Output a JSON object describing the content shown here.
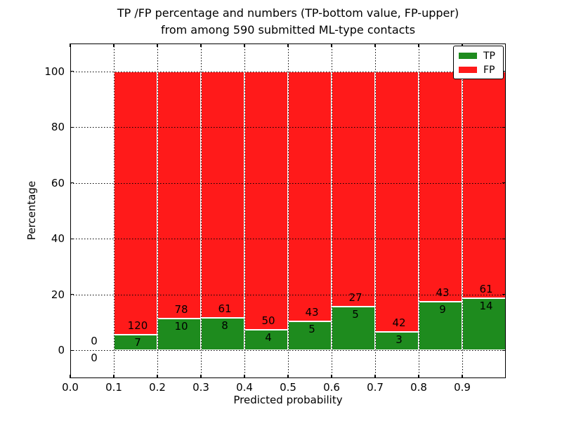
{
  "colors": {
    "tp": "#1e8b1e",
    "fp": "#ff1a1a",
    "grid": "#000000",
    "background": "#ffffff",
    "text": "#000000"
  },
  "chart_data": {
    "type": "bar",
    "stacked": true,
    "normalized_to_percent": true,
    "title_line1": "TP /FP percentage and numbers (TP-bottom value, FP-upper)",
    "title_line2": "from among 590 submitted ML-type contacts",
    "xlabel": "Predicted probability",
    "ylabel": "Percentage",
    "xlim": [
      0.0,
      1.0
    ],
    "ylim": [
      -10,
      110
    ],
    "x_tick_labels": [
      "0.0",
      "0.1",
      "0.2",
      "0.3",
      "0.4",
      "0.5",
      "0.6",
      "0.7",
      "0.8",
      "0.9"
    ],
    "y_tick_labels": [
      "0",
      "20",
      "40",
      "60",
      "80",
      "100"
    ],
    "y_tick_values": [
      0,
      20,
      40,
      60,
      80,
      100
    ],
    "grid_style": "dotted",
    "legend_position": "upper-right",
    "bin_edges": [
      0.0,
      0.1,
      0.2,
      0.3,
      0.4,
      0.5,
      0.6,
      0.7,
      0.8,
      0.9,
      1.0
    ],
    "series": [
      {
        "name": "TP",
        "color": "#1e8b1e",
        "counts": [
          0,
          7,
          10,
          8,
          4,
          5,
          5,
          3,
          9,
          14
        ]
      },
      {
        "name": "FP",
        "color": "#ff1a1a",
        "counts": [
          0,
          120,
          78,
          61,
          50,
          43,
          27,
          42,
          43,
          61
        ]
      }
    ],
    "bar_annotation_note": "each bin labeled with TP count below the stack boundary and FP count above it"
  }
}
